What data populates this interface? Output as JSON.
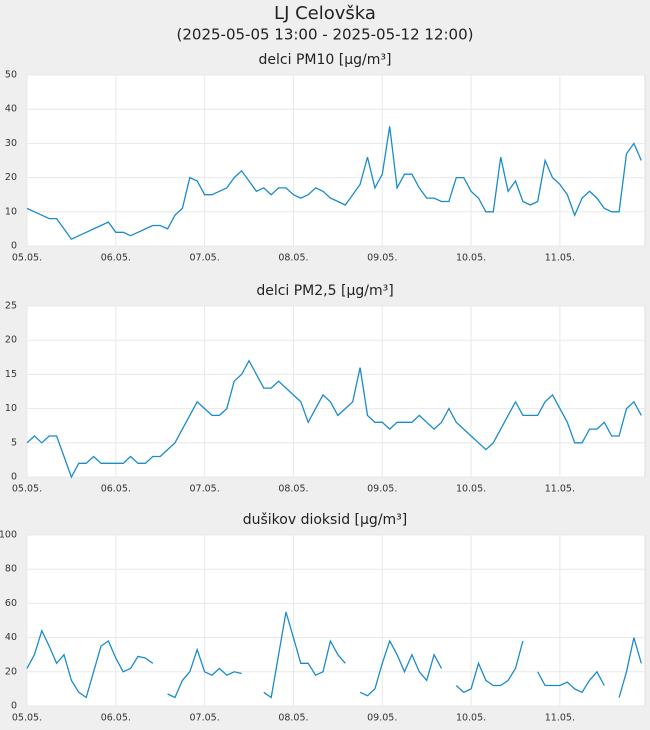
{
  "title": "LJ Celovška",
  "subtitle": "(2025-05-05 13:00 - 2025-05-12 12:00)",
  "chart_data": [
    {
      "type": "line",
      "title": "delci PM10 [µg/m³]",
      "color": "#1a8ccc",
      "grid": true,
      "x": [
        "2025-05-05T13:00",
        "2025-05-05T15:00",
        "2025-05-05T17:00",
        "2025-05-05T19:00",
        "2025-05-05T21:00",
        "2025-05-05T23:00",
        "2025-05-06T01:00",
        "2025-05-06T03:00",
        "2025-05-06T05:00",
        "2025-05-06T07:00",
        "2025-05-06T09:00",
        "2025-05-06T11:00",
        "2025-05-06T13:00",
        "2025-05-06T15:00",
        "2025-05-06T17:00",
        "2025-05-06T19:00",
        "2025-05-06T21:00",
        "2025-05-06T23:00",
        "2025-05-07T01:00",
        "2025-05-07T03:00",
        "2025-05-07T05:00",
        "2025-05-07T07:00",
        "2025-05-07T09:00",
        "2025-05-07T11:00",
        "2025-05-07T13:00",
        "2025-05-07T15:00",
        "2025-05-07T17:00",
        "2025-05-07T19:00",
        "2025-05-07T21:00",
        "2025-05-07T23:00",
        "2025-05-08T01:00",
        "2025-05-08T03:00",
        "2025-05-08T05:00",
        "2025-05-08T07:00",
        "2025-05-08T09:00",
        "2025-05-08T11:00",
        "2025-05-08T13:00",
        "2025-05-08T15:00",
        "2025-05-08T17:00",
        "2025-05-08T19:00",
        "2025-05-08T21:00",
        "2025-05-08T23:00",
        "2025-05-09T01:00",
        "2025-05-09T03:00",
        "2025-05-09T05:00",
        "2025-05-09T07:00",
        "2025-05-09T09:00",
        "2025-05-09T11:00",
        "2025-05-09T13:00",
        "2025-05-09T15:00",
        "2025-05-09T17:00",
        "2025-05-09T19:00",
        "2025-05-09T21:00",
        "2025-05-09T23:00",
        "2025-05-10T01:00",
        "2025-05-10T03:00",
        "2025-05-10T05:00",
        "2025-05-10T07:00",
        "2025-05-10T09:00",
        "2025-05-10T11:00",
        "2025-05-10T13:00",
        "2025-05-10T15:00",
        "2025-05-10T17:00",
        "2025-05-10T19:00",
        "2025-05-10T21:00",
        "2025-05-10T23:00",
        "2025-05-11T01:00",
        "2025-05-11T03:00",
        "2025-05-11T05:00",
        "2025-05-11T07:00",
        "2025-05-11T09:00",
        "2025-05-11T11:00",
        "2025-05-11T13:00",
        "2025-05-11T15:00",
        "2025-05-11T17:00",
        "2025-05-11T19:00",
        "2025-05-11T21:00",
        "2025-05-11T23:00",
        "2025-05-12T01:00",
        "2025-05-12T03:00",
        "2025-05-12T05:00",
        "2025-05-12T07:00",
        "2025-05-12T09:00",
        "2025-05-12T11:00"
      ],
      "values": [
        11,
        10,
        9,
        8,
        8,
        5,
        2,
        3,
        4,
        5,
        6,
        7,
        4,
        4,
        3,
        4,
        5,
        6,
        6,
        5,
        9,
        11,
        20,
        19,
        15,
        15,
        16,
        17,
        20,
        22,
        19,
        16,
        17,
        15,
        17,
        17,
        15,
        14,
        15,
        17,
        16,
        14,
        13,
        12,
        15,
        18,
        26,
        17,
        21,
        35,
        17,
        21,
        21,
        17,
        14,
        14,
        13,
        13,
        20,
        20,
        16,
        14,
        10,
        10,
        26,
        16,
        19,
        13,
        12,
        13,
        25,
        20,
        18,
        15,
        9,
        14,
        16,
        14,
        11,
        10,
        10,
        27,
        30,
        25
      ],
      "xlim": [
        "2025-05-05T13:00",
        "2025-05-12T12:00"
      ],
      "xticks": [
        {
          "value": "2025-05-05T13:00",
          "label": "05.05."
        },
        {
          "value": "2025-05-06T13:00",
          "label": "06.05."
        },
        {
          "value": "2025-05-07T13:00",
          "label": "07.05."
        },
        {
          "value": "2025-05-08T13:00",
          "label": "08.05."
        },
        {
          "value": "2025-05-09T13:00",
          "label": "09.05."
        },
        {
          "value": "2025-05-10T13:00",
          "label": "10.05."
        },
        {
          "value": "2025-05-11T13:00",
          "label": "11.05."
        }
      ],
      "ylim": [
        0,
        50
      ],
      "yticks": [
        0,
        10,
        20,
        30,
        40,
        50
      ]
    },
    {
      "type": "line",
      "title": "delci PM2,5 [µg/m³]",
      "color": "#1a8ccc",
      "grid": true,
      "x": [
        "2025-05-05T13:00",
        "2025-05-05T15:00",
        "2025-05-05T17:00",
        "2025-05-05T19:00",
        "2025-05-05T21:00",
        "2025-05-05T23:00",
        "2025-05-06T01:00",
        "2025-05-06T03:00",
        "2025-05-06T05:00",
        "2025-05-06T07:00",
        "2025-05-06T09:00",
        "2025-05-06T11:00",
        "2025-05-06T13:00",
        "2025-05-06T15:00",
        "2025-05-06T17:00",
        "2025-05-06T19:00",
        "2025-05-06T21:00",
        "2025-05-06T23:00",
        "2025-05-07T01:00",
        "2025-05-07T03:00",
        "2025-05-07T05:00",
        "2025-05-07T07:00",
        "2025-05-07T09:00",
        "2025-05-07T11:00",
        "2025-05-07T13:00",
        "2025-05-07T15:00",
        "2025-05-07T17:00",
        "2025-05-07T19:00",
        "2025-05-07T21:00",
        "2025-05-07T23:00",
        "2025-05-08T01:00",
        "2025-05-08T03:00",
        "2025-05-08T05:00",
        "2025-05-08T07:00",
        "2025-05-08T09:00",
        "2025-05-08T11:00",
        "2025-05-08T13:00",
        "2025-05-08T15:00",
        "2025-05-08T17:00",
        "2025-05-08T19:00",
        "2025-05-08T21:00",
        "2025-05-08T23:00",
        "2025-05-09T01:00",
        "2025-05-09T03:00",
        "2025-05-09T05:00",
        "2025-05-09T07:00",
        "2025-05-09T09:00",
        "2025-05-09T11:00",
        "2025-05-09T13:00",
        "2025-05-09T15:00",
        "2025-05-09T17:00",
        "2025-05-09T19:00",
        "2025-05-09T21:00",
        "2025-05-09T23:00",
        "2025-05-10T01:00",
        "2025-05-10T03:00",
        "2025-05-10T05:00",
        "2025-05-10T07:00",
        "2025-05-10T09:00",
        "2025-05-10T11:00",
        "2025-05-10T13:00",
        "2025-05-10T15:00",
        "2025-05-10T17:00",
        "2025-05-10T19:00",
        "2025-05-10T21:00",
        "2025-05-10T23:00",
        "2025-05-11T01:00",
        "2025-05-11T03:00",
        "2025-05-11T05:00",
        "2025-05-11T07:00",
        "2025-05-11T09:00",
        "2025-05-11T11:00",
        "2025-05-11T13:00",
        "2025-05-11T15:00",
        "2025-05-11T17:00",
        "2025-05-11T19:00",
        "2025-05-11T21:00",
        "2025-05-11T23:00",
        "2025-05-12T01:00",
        "2025-05-12T03:00",
        "2025-05-12T05:00",
        "2025-05-12T07:00",
        "2025-05-12T09:00",
        "2025-05-12T11:00"
      ],
      "values": [
        5,
        6,
        5,
        6,
        6,
        3,
        0,
        2,
        2,
        3,
        2,
        2,
        2,
        2,
        3,
        2,
        2,
        3,
        3,
        4,
        5,
        7,
        9,
        11,
        10,
        9,
        9,
        10,
        14,
        15,
        17,
        15,
        13,
        13,
        14,
        13,
        12,
        11,
        8,
        10,
        12,
        11,
        9,
        10,
        11,
        16,
        9,
        8,
        8,
        7,
        8,
        8,
        8,
        9,
        8,
        7,
        8,
        10,
        8,
        7,
        6,
        5,
        4,
        5,
        7,
        9,
        11,
        9,
        9,
        9,
        11,
        12,
        10,
        8,
        5,
        5,
        7,
        7,
        8,
        6,
        6,
        10,
        11,
        9
      ],
      "xlim": [
        "2025-05-05T13:00",
        "2025-05-12T12:00"
      ],
      "xticks": [
        {
          "value": "2025-05-05T13:00",
          "label": "05.05."
        },
        {
          "value": "2025-05-06T13:00",
          "label": "06.05."
        },
        {
          "value": "2025-05-07T13:00",
          "label": "07.05."
        },
        {
          "value": "2025-05-08T13:00",
          "label": "08.05."
        },
        {
          "value": "2025-05-09T13:00",
          "label": "09.05."
        },
        {
          "value": "2025-05-10T13:00",
          "label": "10.05."
        },
        {
          "value": "2025-05-11T13:00",
          "label": "11.05."
        }
      ],
      "ylim": [
        0,
        25
      ],
      "yticks": [
        0,
        5,
        10,
        15,
        20,
        25
      ]
    },
    {
      "type": "line",
      "title": "dušikov dioksid [µg/m³]",
      "color": "#1a8ccc",
      "grid": true,
      "x": [
        "2025-05-05T13:00",
        "2025-05-05T15:00",
        "2025-05-05T17:00",
        "2025-05-05T19:00",
        "2025-05-05T21:00",
        "2025-05-05T23:00",
        "2025-05-06T01:00",
        "2025-05-06T03:00",
        "2025-05-06T05:00",
        "2025-05-06T07:00",
        "2025-05-06T09:00",
        "2025-05-06T11:00",
        "2025-05-06T13:00",
        "2025-05-06T15:00",
        "2025-05-06T17:00",
        "2025-05-06T19:00",
        "2025-05-06T21:00",
        "2025-05-06T23:00",
        "2025-05-07T01:00",
        "2025-05-07T03:00",
        "2025-05-07T05:00",
        "2025-05-07T07:00",
        "2025-05-07T09:00",
        "2025-05-07T11:00",
        "2025-05-07T13:00",
        "2025-05-07T15:00",
        "2025-05-07T17:00",
        "2025-05-07T19:00",
        "2025-05-07T21:00",
        "2025-05-07T23:00",
        "2025-05-08T01:00",
        "2025-05-08T03:00",
        "2025-05-08T05:00",
        "2025-05-08T07:00",
        "2025-05-08T09:00",
        "2025-05-08T11:00",
        "2025-05-08T13:00",
        "2025-05-08T15:00",
        "2025-05-08T17:00",
        "2025-05-08T19:00",
        "2025-05-08T21:00",
        "2025-05-08T23:00",
        "2025-05-09T01:00",
        "2025-05-09T03:00",
        "2025-05-09T05:00",
        "2025-05-09T07:00",
        "2025-05-09T09:00",
        "2025-05-09T11:00",
        "2025-05-09T13:00",
        "2025-05-09T15:00",
        "2025-05-09T17:00",
        "2025-05-09T19:00",
        "2025-05-09T21:00",
        "2025-05-09T23:00",
        "2025-05-10T01:00",
        "2025-05-10T03:00",
        "2025-05-10T05:00",
        "2025-05-10T07:00",
        "2025-05-10T09:00",
        "2025-05-10T11:00",
        "2025-05-10T13:00",
        "2025-05-10T15:00",
        "2025-05-10T17:00",
        "2025-05-10T19:00",
        "2025-05-10T21:00",
        "2025-05-10T23:00",
        "2025-05-11T01:00",
        "2025-05-11T03:00",
        "2025-05-11T05:00",
        "2025-05-11T07:00",
        "2025-05-11T09:00",
        "2025-05-11T11:00",
        "2025-05-11T13:00",
        "2025-05-11T15:00",
        "2025-05-11T17:00",
        "2025-05-11T19:00",
        "2025-05-11T21:00",
        "2025-05-11T23:00",
        "2025-05-12T01:00",
        "2025-05-12T03:00",
        "2025-05-12T05:00",
        "2025-05-12T07:00",
        "2025-05-12T09:00",
        "2025-05-12T11:00"
      ],
      "values": [
        22,
        30,
        44,
        35,
        25,
        30,
        15,
        8,
        5,
        20,
        35,
        38,
        28,
        20,
        22,
        29,
        28,
        25,
        null,
        7,
        5,
        15,
        20,
        33,
        20,
        18,
        22,
        18,
        20,
        19,
        null,
        null,
        8,
        5,
        30,
        55,
        40,
        25,
        25,
        18,
        20,
        38,
        30,
        25,
        null,
        8,
        6,
        10,
        25,
        38,
        30,
        20,
        30,
        20,
        15,
        30,
        22,
        null,
        12,
        8,
        10,
        25,
        15,
        12,
        12,
        15,
        22,
        38,
        null,
        20,
        12,
        12,
        12,
        14,
        10,
        8,
        15,
        20,
        12,
        null,
        5,
        20,
        40,
        25
      ],
      "xlim": [
        "2025-05-05T13:00",
        "2025-05-12T12:00"
      ],
      "xticks": [
        {
          "value": "2025-05-05T13:00",
          "label": "05.05."
        },
        {
          "value": "2025-05-06T13:00",
          "label": "06.05."
        },
        {
          "value": "2025-05-07T13:00",
          "label": "07.05."
        },
        {
          "value": "2025-05-08T13:00",
          "label": "08.05."
        },
        {
          "value": "2025-05-09T13:00",
          "label": "09.05."
        },
        {
          "value": "2025-05-10T13:00",
          "label": "10.05."
        },
        {
          "value": "2025-05-11T13:00",
          "label": "11.05."
        }
      ],
      "ylim": [
        0,
        100
      ],
      "yticks": [
        0,
        20,
        40,
        60,
        80,
        100
      ]
    }
  ]
}
